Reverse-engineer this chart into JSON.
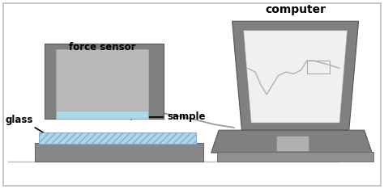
{
  "dark_gray": "#808080",
  "mid_gray": "#909090",
  "light_gray": "#b8b8b8",
  "blue_sample": "#add8e6",
  "screen_white": "#f0f0f0",
  "labels": {
    "force_sensor": "force sensor",
    "glass": "glass",
    "sample": "sample",
    "computer": "computer"
  },
  "font_size": 8.5,
  "computer_font_size": 10
}
